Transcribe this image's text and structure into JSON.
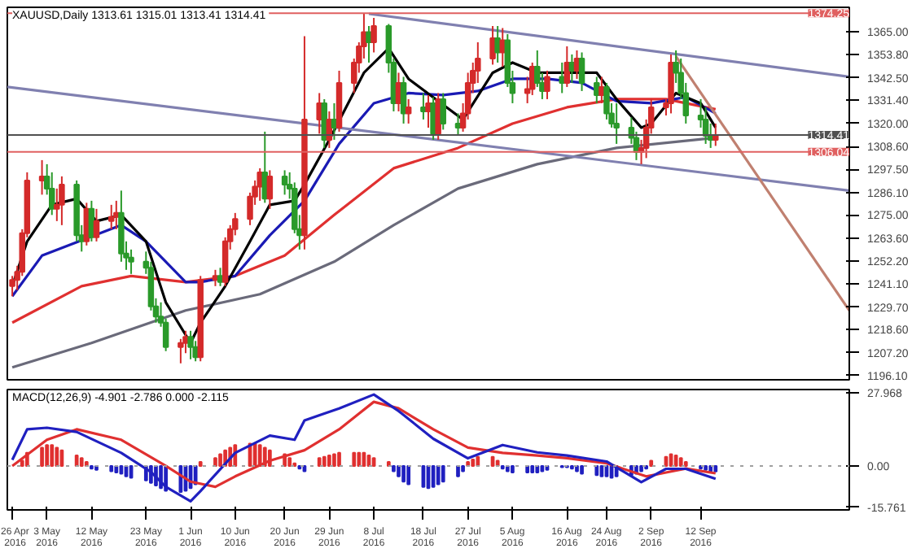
{
  "chart_data": [
    {
      "type": "candlestick",
      "title": "XAUUSD,Daily  1313.61 1315.01 1313.41 1314.41",
      "x": [
        "2016-04-26",
        "2016-04-27",
        "2016-04-28",
        "2016-04-29",
        "2016-05-02",
        "2016-05-03",
        "2016-05-04",
        "2016-05-05",
        "2016-05-06",
        "2016-05-09",
        "2016-05-10",
        "2016-05-11",
        "2016-05-12",
        "2016-05-13",
        "2016-05-16",
        "2016-05-17",
        "2016-05-18",
        "2016-05-19",
        "2016-05-20",
        "2016-05-23",
        "2016-05-24",
        "2016-05-25",
        "2016-05-26",
        "2016-05-27",
        "2016-05-30",
        "2016-05-31",
        "2016-06-01",
        "2016-06-02",
        "2016-06-03",
        "2016-06-06",
        "2016-06-07",
        "2016-06-08",
        "2016-06-09",
        "2016-06-10",
        "2016-06-13",
        "2016-06-14",
        "2016-06-15",
        "2016-06-16",
        "2016-06-17",
        "2016-06-20",
        "2016-06-21",
        "2016-06-22",
        "2016-06-23",
        "2016-06-24",
        "2016-06-27",
        "2016-06-28",
        "2016-06-29",
        "2016-06-30",
        "2016-07-01",
        "2016-07-04",
        "2016-07-05",
        "2016-07-06",
        "2016-07-07",
        "2016-07-08",
        "2016-07-11",
        "2016-07-12",
        "2016-07-13",
        "2016-07-14",
        "2016-07-15",
        "2016-07-18",
        "2016-07-19",
        "2016-07-20",
        "2016-07-21",
        "2016-07-22",
        "2016-07-25",
        "2016-07-26",
        "2016-07-27",
        "2016-07-28",
        "2016-07-29",
        "2016-08-01",
        "2016-08-02",
        "2016-08-03",
        "2016-08-04",
        "2016-08-05",
        "2016-08-08",
        "2016-08-09",
        "2016-08-10",
        "2016-08-11",
        "2016-08-12",
        "2016-08-15",
        "2016-08-16",
        "2016-08-17",
        "2016-08-18",
        "2016-08-19",
        "2016-08-22",
        "2016-08-23",
        "2016-08-24",
        "2016-08-25",
        "2016-08-26",
        "2016-08-29",
        "2016-08-30",
        "2016-08-31",
        "2016-09-01",
        "2016-09-02",
        "2016-09-05",
        "2016-09-06",
        "2016-09-07",
        "2016-09-08",
        "2016-09-09",
        "2016-09-12",
        "2016-09-13",
        "2016-09-14",
        "2016-09-15"
      ],
      "ohlc": [
        [
          1240,
          1245,
          1235,
          1243
        ],
        [
          1243,
          1250,
          1238,
          1247
        ],
        [
          1247,
          1268,
          1245,
          1266
        ],
        [
          1266,
          1296,
          1264,
          1292
        ],
        [
          1292,
          1302,
          1285,
          1294
        ],
        [
          1294,
          1300,
          1285,
          1288
        ],
        [
          1288,
          1296,
          1275,
          1278
        ],
        [
          1278,
          1288,
          1272,
          1280
        ],
        [
          1280,
          1294,
          1270,
          1290
        ],
        [
          1290,
          1292,
          1262,
          1265
        ],
        [
          1265,
          1270,
          1257,
          1262
        ],
        [
          1262,
          1281,
          1260,
          1278
        ],
        [
          1278,
          1282,
          1262,
          1264
        ],
        [
          1264,
          1278,
          1262,
          1272
        ],
        [
          1272,
          1280,
          1268,
          1274
        ],
        [
          1274,
          1282,
          1268,
          1276
        ],
        [
          1276,
          1287,
          1252,
          1256
        ],
        [
          1256,
          1262,
          1248,
          1254
        ],
        [
          1254,
          1258,
          1246,
          1252
        ],
        [
          1252,
          1257,
          1246,
          1249
        ],
        [
          1249,
          1252,
          1228,
          1230
        ],
        [
          1230,
          1234,
          1222,
          1225
        ],
        [
          1225,
          1232,
          1220,
          1222
        ],
        [
          1222,
          1224,
          1208,
          1210
        ],
        [
          1210,
          1214,
          1202,
          1212
        ],
        [
          1212,
          1218,
          1207,
          1215
        ],
        [
          1215,
          1218,
          1204,
          1210
        ],
        [
          1210,
          1213,
          1203,
          1205
        ],
        [
          1205,
          1245,
          1203,
          1243
        ],
        [
          1243,
          1248,
          1240,
          1245
        ],
        [
          1245,
          1249,
          1240,
          1242
        ],
        [
          1242,
          1264,
          1240,
          1262
        ],
        [
          1262,
          1270,
          1258,
          1268
        ],
        [
          1268,
          1276,
          1265,
          1273
        ],
        [
          1273,
          1286,
          1270,
          1284
        ],
        [
          1284,
          1292,
          1280,
          1289
        ],
        [
          1289,
          1298,
          1282,
          1296
        ],
        [
          1296,
          1316,
          1281,
          1283
        ],
        [
          1283,
          1297,
          1278,
          1294
        ],
        [
          1294,
          1297,
          1285,
          1290
        ],
        [
          1290,
          1296,
          1283,
          1288
        ],
        [
          1288,
          1291,
          1266,
          1268
        ],
        [
          1268,
          1275,
          1258,
          1265
        ],
        [
          1265,
          1363,
          1258,
          1322
        ],
        [
          1322,
          1335,
          1315,
          1330
        ],
        [
          1330,
          1332,
          1308,
          1312
        ],
        [
          1312,
          1326,
          1308,
          1322
        ],
        [
          1322,
          1330,
          1312,
          1318
        ],
        [
          1318,
          1346,
          1316,
          1340
        ],
        [
          1340,
          1352,
          1335,
          1350
        ],
        [
          1350,
          1360,
          1345,
          1358
        ],
        [
          1358,
          1374,
          1352,
          1365
        ],
        [
          1365,
          1368,
          1350,
          1360
        ],
        [
          1360,
          1372,
          1355,
          1368
        ],
        [
          1368,
          1369,
          1345,
          1350
        ],
        [
          1350,
          1352,
          1326,
          1330
        ],
        [
          1330,
          1345,
          1326,
          1340
        ],
        [
          1340,
          1343,
          1320,
          1325
        ],
        [
          1325,
          1332,
          1320,
          1328
        ],
        [
          1328,
          1335,
          1322,
          1326
        ],
        [
          1326,
          1334,
          1318,
          1330
        ],
        [
          1330,
          1333,
          1312,
          1315
        ],
        [
          1315,
          1335,
          1312,
          1332
        ],
        [
          1332,
          1335,
          1317,
          1320
        ],
        [
          1320,
          1325,
          1314,
          1318
        ],
        [
          1318,
          1330,
          1316,
          1325
        ],
        [
          1325,
          1345,
          1322,
          1340
        ],
        [
          1340,
          1350,
          1335,
          1346
        ],
        [
          1346,
          1360,
          1340,
          1352
        ],
        [
          1352,
          1368,
          1349,
          1362
        ],
        [
          1362,
          1368,
          1350,
          1355
        ],
        [
          1355,
          1367,
          1348,
          1361
        ],
        [
          1361,
          1364,
          1338,
          1340
        ],
        [
          1340,
          1346,
          1330,
          1335
        ],
        [
          1335,
          1343,
          1330,
          1337
        ],
        [
          1337,
          1350,
          1334,
          1348
        ],
        [
          1348,
          1356,
          1338,
          1340
        ],
        [
          1340,
          1345,
          1332,
          1336
        ],
        [
          1336,
          1346,
          1332,
          1343
        ],
        [
          1343,
          1350,
          1335,
          1340
        ],
        [
          1340,
          1358,
          1338,
          1350
        ],
        [
          1350,
          1354,
          1340,
          1346
        ],
        [
          1346,
          1356,
          1342,
          1352
        ],
        [
          1352,
          1355,
          1336,
          1340
        ],
        [
          1340,
          1343,
          1330,
          1334
        ],
        [
          1334,
          1343,
          1330,
          1338
        ],
        [
          1338,
          1340,
          1322,
          1325
        ],
        [
          1325,
          1330,
          1318,
          1320
        ],
        [
          1320,
          1330,
          1310,
          1318
        ],
        [
          1318,
          1323,
          1310,
          1313
        ],
        [
          1313,
          1316,
          1302,
          1306
        ],
        [
          1306,
          1312,
          1300,
          1308
        ],
        [
          1308,
          1322,
          1303,
          1318
        ],
        [
          1318,
          1332,
          1315,
          1328
        ],
        [
          1328,
          1332,
          1324,
          1330
        ],
        [
          1330,
          1354,
          1325,
          1350
        ],
        [
          1350,
          1356,
          1340,
          1345
        ],
        [
          1345,
          1352,
          1332,
          1335
        ],
        [
          1335,
          1340,
          1320,
          1324
        ],
        [
          1324,
          1332,
          1318,
          1322
        ],
        [
          1322,
          1328,
          1310,
          1314
        ],
        [
          1314,
          1320,
          1308,
          1312
        ],
        [
          1312,
          1320,
          1309,
          1314
        ]
      ],
      "colors": [
        "#d42a2a",
        "#d42a2a",
        "#d42a2a",
        "#d42a2a",
        "#d42a2a",
        "#2a9a2a",
        "#2a9a2a",
        "#d42a2a",
        "#d42a2a",
        "#2a9a2a",
        "#2a9a2a",
        "#d42a2a",
        "#2a9a2a",
        "#d42a2a",
        "#d42a2a",
        "#d42a2a",
        "#2a9a2a",
        "#2a9a2a",
        "#2a9a2a",
        "#2a9a2a",
        "#2a9a2a",
        "#2a9a2a",
        "#2a9a2a",
        "#2a9a2a",
        "#d42a2a",
        "#d42a2a",
        "#2a9a2a",
        "#2a9a2a",
        "#d42a2a",
        "#d42a2a",
        "#2a9a2a",
        "#d42a2a",
        "#d42a2a",
        "#d42a2a",
        "#d42a2a",
        "#d42a2a",
        "#d42a2a",
        "#2a9a2a",
        "#d42a2a",
        "#2a9a2a",
        "#2a9a2a",
        "#2a9a2a",
        "#2a9a2a",
        "#d42a2a",
        "#d42a2a",
        "#2a9a2a",
        "#d42a2a",
        "#2a9a2a",
        "#d42a2a",
        "#d42a2a",
        "#d42a2a",
        "#d42a2a",
        "#2a9a2a",
        "#d42a2a",
        "#2a9a2a",
        "#2a9a2a",
        "#d42a2a",
        "#2a9a2a",
        "#d42a2a",
        "#2a9a2a",
        "#d42a2a",
        "#2a9a2a",
        "#d42a2a",
        "#2a9a2a",
        "#2a9a2a",
        "#d42a2a",
        "#d42a2a",
        "#d42a2a",
        "#d42a2a",
        "#d42a2a",
        "#2a9a2a",
        "#d42a2a",
        "#2a9a2a",
        "#2a9a2a",
        "#d42a2a",
        "#d42a2a",
        "#2a9a2a",
        "#2a9a2a",
        "#d42a2a",
        "#2a9a2a",
        "#d42a2a",
        "#2a9a2a",
        "#d42a2a",
        "#2a9a2a",
        "#2a9a2a",
        "#d42a2a",
        "#2a9a2a",
        "#2a9a2a",
        "#2a9a2a",
        "#2a9a2a",
        "#2a9a2a",
        "#d42a2a",
        "#d42a2a",
        "#d42a2a",
        "#d42a2a",
        "#d42a2a",
        "#2a9a2a",
        "#2a9a2a",
        "#2a9a2a",
        "#2a9a2a",
        "#2a9a2a",
        "#2a9a2a",
        "#d42a2a"
      ],
      "series": [
        {
          "type": "line",
          "color": "#6a6a7a",
          "x": [
            "2016-04-26",
            "2016-05-12",
            "2016-05-31",
            "2016-06-15",
            "2016-06-30",
            "2016-07-12",
            "2016-07-25",
            "2016-08-10",
            "2016-08-26",
            "2016-09-15"
          ],
          "values": [
            1200,
            1212,
            1228,
            1236,
            1252,
            1270,
            1288,
            1300,
            1308,
            1313
          ]
        },
        {
          "type": "line",
          "color": "#e03030",
          "x": [
            "2016-04-26",
            "2016-05-10",
            "2016-05-20",
            "2016-05-31",
            "2016-06-10",
            "2016-06-20",
            "2016-06-30",
            "2016-07-12",
            "2016-07-25",
            "2016-08-05",
            "2016-08-16",
            "2016-08-26",
            "2016-09-05",
            "2016-09-15"
          ],
          "values": [
            1222,
            1240,
            1245,
            1242,
            1245,
            1255,
            1275,
            1298,
            1308,
            1320,
            1328,
            1332,
            1332,
            1327
          ]
        },
        {
          "type": "line",
          "color": "#1a1ab4",
          "x": [
            "2016-04-26",
            "2016-05-02",
            "2016-05-18",
            "2016-05-23",
            "2016-05-31",
            "2016-06-03",
            "2016-06-10",
            "2016-06-17",
            "2016-06-24",
            "2016-07-01",
            "2016-07-08",
            "2016-07-15",
            "2016-07-22",
            "2016-07-29",
            "2016-08-05",
            "2016-08-12",
            "2016-08-19",
            "2016-08-26",
            "2016-09-02",
            "2016-09-09",
            "2016-09-15"
          ],
          "values": [
            1235,
            1255,
            1270,
            1262,
            1242,
            1242,
            1245,
            1265,
            1282,
            1310,
            1330,
            1335,
            1334,
            1336,
            1342,
            1342,
            1340,
            1331,
            1330,
            1333,
            1325
          ]
        },
        {
          "type": "line",
          "color": "#000000",
          "x": [
            "2016-04-26",
            "2016-04-29",
            "2016-05-04",
            "2016-05-09",
            "2016-05-13",
            "2016-05-18",
            "2016-05-23",
            "2016-05-27",
            "2016-06-01",
            "2016-06-03",
            "2016-06-08",
            "2016-06-13",
            "2016-06-17",
            "2016-06-22",
            "2016-06-24",
            "2016-06-29",
            "2016-07-06",
            "2016-07-11",
            "2016-07-15",
            "2016-07-26",
            "2016-08-01",
            "2016-08-05",
            "2016-08-10",
            "2016-08-16",
            "2016-08-22",
            "2016-08-26",
            "2016-08-31",
            "2016-09-02",
            "2016-09-07",
            "2016-09-12",
            "2016-09-15"
          ],
          "values": [
            1240,
            1262,
            1280,
            1283,
            1272,
            1275,
            1262,
            1232,
            1212,
            1222,
            1240,
            1262,
            1280,
            1282,
            1290,
            1312,
            1345,
            1357,
            1342,
            1322,
            1345,
            1350,
            1345,
            1345,
            1345,
            1332,
            1318,
            1320,
            1335,
            1330,
            1318
          ]
        },
        {
          "type": "line",
          "color": "#8080b0",
          "x": [
            "2016-07-07",
            "2016-10-12"
          ],
          "values": [
            1374,
            1343
          ]
        },
        {
          "type": "line",
          "color": "#8080b0",
          "x": [
            "2016-04-25",
            "2016-10-12"
          ],
          "values": [
            1338,
            1287
          ]
        },
        {
          "type": "line",
          "color": "#c08070",
          "x": [
            "2016-09-07",
            "2016-10-12"
          ],
          "values": [
            1353,
            1228
          ]
        }
      ],
      "xlim": [
        "2016-04-25",
        "2016-10-12"
      ],
      "ylim": [
        1193.9,
        1377.2
      ],
      "yticks": [
        {
          "value": 1365,
          "label": "1365.00"
        },
        {
          "value": 1353.8,
          "label": "1353.80"
        },
        {
          "value": 1342.5,
          "label": "1342.50"
        },
        {
          "value": 1331.4,
          "label": "1331.40"
        },
        {
          "value": 1320,
          "label": "1320.00"
        },
        {
          "value": 1308.6,
          "label": "1308.60"
        },
        {
          "value": 1297.5,
          "label": "1297.50"
        },
        {
          "value": 1286.1,
          "label": "1286.10"
        },
        {
          "value": 1275,
          "label": "1275.00"
        },
        {
          "value": 1263.6,
          "label": "1263.60"
        },
        {
          "value": 1252.2,
          "label": "1252.20"
        },
        {
          "value": 1241.1,
          "label": "1241.10"
        },
        {
          "value": 1229.7,
          "label": "1229.70"
        },
        {
          "value": 1218.6,
          "label": "1218.60"
        },
        {
          "value": 1207.2,
          "label": "1207.20"
        },
        {
          "value": 1196.1,
          "label": "1196.10"
        }
      ],
      "tick_labels": "y",
      "ref_lines": [
        {
          "axis": "y",
          "value": 1374.25,
          "label": "1374.25",
          "color": "#e06060"
        },
        {
          "axis": "y",
          "value": 1314.41,
          "label": "1314.41",
          "color": "#505050"
        },
        {
          "axis": "y",
          "value": 1306.04,
          "label": "1306.04",
          "color": "#e06060"
        }
      ]
    },
    {
      "type": "line",
      "title": "MACD(12,26,9) -4.901 -2.786 0.000 -2.115",
      "series": [
        {
          "type": "bar",
          "color": "#e03030",
          "x": [
            "2016-04-28",
            "2016-04-29",
            "2016-05-02",
            "2016-05-03",
            "2016-05-04",
            "2016-05-05",
            "2016-05-06",
            "2016-05-09",
            "2016-05-10",
            "2016-05-11",
            "2016-06-03",
            "2016-06-06",
            "2016-06-07",
            "2016-06-08",
            "2016-06-09",
            "2016-06-10",
            "2016-06-13",
            "2016-06-14",
            "2016-06-15",
            "2016-06-16",
            "2016-06-17",
            "2016-06-20",
            "2016-06-21",
            "2016-06-22",
            "2016-06-27",
            "2016-06-28",
            "2016-06-29",
            "2016-06-30",
            "2016-07-01",
            "2016-07-04",
            "2016-07-05",
            "2016-07-06",
            "2016-07-07",
            "2016-07-08",
            "2016-07-11",
            "2016-07-27",
            "2016-07-28",
            "2016-07-29",
            "2016-08-01",
            "2016-08-02",
            "2016-09-02",
            "2016-09-05",
            "2016-09-06",
            "2016-09-07",
            "2016-09-08",
            "2016-09-09"
          ],
          "values": [
            2,
            5,
            7,
            8,
            8,
            7,
            6,
            4,
            3,
            1.5,
            1.5,
            3,
            4.5,
            6,
            7,
            8,
            8.5,
            8.5,
            8,
            7,
            6,
            4.5,
            3,
            1,
            3,
            3.5,
            4,
            4.5,
            5,
            5,
            5,
            5,
            4,
            3,
            1.5,
            1.5,
            2.5,
            3.5,
            3.5,
            2,
            2,
            3.5,
            4.5,
            4,
            3,
            1.5
          ]
        },
        {
          "type": "bar",
          "color": "#2020c0",
          "x": [
            "2016-05-12",
            "2016-05-13",
            "2016-05-16",
            "2016-05-17",
            "2016-05-18",
            "2016-05-19",
            "2016-05-20",
            "2016-05-23",
            "2016-05-24",
            "2016-05-25",
            "2016-05-26",
            "2016-05-27",
            "2016-05-30",
            "2016-05-31",
            "2016-06-01",
            "2016-06-02",
            "2016-06-23",
            "2016-06-24",
            "2016-07-12",
            "2016-07-13",
            "2016-07-14",
            "2016-07-15",
            "2016-07-18",
            "2016-07-19",
            "2016-07-20",
            "2016-07-21",
            "2016-07-22",
            "2016-07-25",
            "2016-07-26",
            "2016-08-03",
            "2016-08-04",
            "2016-08-05",
            "2016-08-08",
            "2016-08-09",
            "2016-08-10",
            "2016-08-11",
            "2016-08-12",
            "2016-08-15",
            "2016-08-16",
            "2016-08-17",
            "2016-08-18",
            "2016-08-19",
            "2016-08-22",
            "2016-08-23",
            "2016-08-24",
            "2016-08-25",
            "2016-08-26",
            "2016-08-29",
            "2016-08-30",
            "2016-08-31",
            "2016-09-01",
            "2016-09-12",
            "2016-09-13",
            "2016-09-14",
            "2016-09-15"
          ],
          "values": [
            -1,
            -1.5,
            -2,
            -2.5,
            -3,
            -4,
            -4.5,
            -5.5,
            -6.5,
            -7.5,
            -8.5,
            -9.5,
            -10,
            -9.5,
            -8.5,
            -7,
            -1,
            -2,
            -2,
            -4,
            -6,
            -7,
            -8,
            -8.5,
            -8,
            -7,
            -6,
            -4,
            -2,
            -1,
            -2,
            -2.5,
            -2.5,
            -2.5,
            -2.5,
            -2,
            -1.5,
            -0.5,
            -0.5,
            -1,
            -2,
            -3,
            -3.5,
            -4,
            -4,
            -4.5,
            -4,
            -3.5,
            -3,
            -2,
            -1,
            -1,
            -1.5,
            -2,
            -2.1
          ]
        },
        {
          "type": "line",
          "color": "#e03030",
          "x": [
            "2016-04-26",
            "2016-05-03",
            "2016-05-09",
            "2016-05-18",
            "2016-05-27",
            "2016-06-01",
            "2016-06-06",
            "2016-06-10",
            "2016-06-17",
            "2016-06-24",
            "2016-07-01",
            "2016-07-08",
            "2016-07-13",
            "2016-07-20",
            "2016-07-27",
            "2016-08-03",
            "2016-08-10",
            "2016-08-16",
            "2016-08-24",
            "2016-09-01",
            "2016-09-05",
            "2016-09-09",
            "2016-09-15"
          ],
          "values": [
            0,
            10,
            14,
            10,
            0,
            -6,
            -8,
            -4,
            2,
            6,
            14,
            24.5,
            22,
            14,
            7,
            5,
            4,
            3,
            1,
            -4,
            -2.5,
            -1,
            -2.8
          ]
        },
        {
          "type": "line",
          "color": "#2020c0",
          "x": [
            "2016-04-26",
            "2016-04-29",
            "2016-05-03",
            "2016-05-09",
            "2016-05-18",
            "2016-05-24",
            "2016-05-27",
            "2016-06-01",
            "2016-06-03",
            "2016-06-10",
            "2016-06-17",
            "2016-06-22",
            "2016-06-24",
            "2016-07-01",
            "2016-07-08",
            "2016-07-13",
            "2016-07-20",
            "2016-07-27",
            "2016-08-03",
            "2016-08-10",
            "2016-08-16",
            "2016-08-24",
            "2016-08-31",
            "2016-09-05",
            "2016-09-09",
            "2016-09-15"
          ],
          "values": [
            2.3,
            14,
            14.6,
            13,
            5,
            -2.3,
            -8,
            -13.5,
            -9.6,
            5,
            11.6,
            10,
            17.4,
            22,
            27.3,
            21,
            10.4,
            2.9,
            8,
            5.2,
            4,
            1.7,
            -6.2,
            -1.1,
            -1.1,
            -4.9
          ]
        }
      ],
      "xlim": [
        "2016-04-25",
        "2016-10-12"
      ],
      "xticks": [
        {
          "value": "2016-04-26",
          "label": "26 Apr 2016"
        },
        {
          "value": "2016-05-03",
          "label": "3 May 2016"
        },
        {
          "value": "2016-05-12",
          "label": "12 May 2016"
        },
        {
          "value": "2016-05-23",
          "label": "23 May 2016"
        },
        {
          "value": "2016-06-01",
          "label": "1 Jun 2016"
        },
        {
          "value": "2016-06-10",
          "label": "10 Jun 2016"
        },
        {
          "value": "2016-06-20",
          "label": "20 Jun 2016"
        },
        {
          "value": "2016-06-29",
          "label": "29 Jun 2016"
        },
        {
          "value": "2016-07-08",
          "label": "8 Jul 2016"
        },
        {
          "value": "2016-07-18",
          "label": "18 Jul 2016"
        },
        {
          "value": "2016-07-27",
          "label": "27 Jul 2016"
        },
        {
          "value": "2016-08-05",
          "label": "5 Aug 2016"
        },
        {
          "value": "2016-08-16",
          "label": "16 Aug 2016"
        },
        {
          "value": "2016-08-24",
          "label": "24 Aug 2016"
        },
        {
          "value": "2016-09-02",
          "label": "2 Sep 2016"
        },
        {
          "value": "2016-09-12",
          "label": "12 Sep 2016"
        }
      ],
      "ylim": [
        -16.8,
        29.2
      ],
      "yticks": [
        {
          "value": 27.968,
          "label": "27.968"
        },
        {
          "value": 0,
          "label": "0.00"
        },
        {
          "value": -15.761,
          "label": "-15.761"
        }
      ],
      "ref_lines": [
        {
          "axis": "y",
          "value": 0,
          "color": "#a0a0a0",
          "line_style": "dotted"
        }
      ]
    }
  ]
}
